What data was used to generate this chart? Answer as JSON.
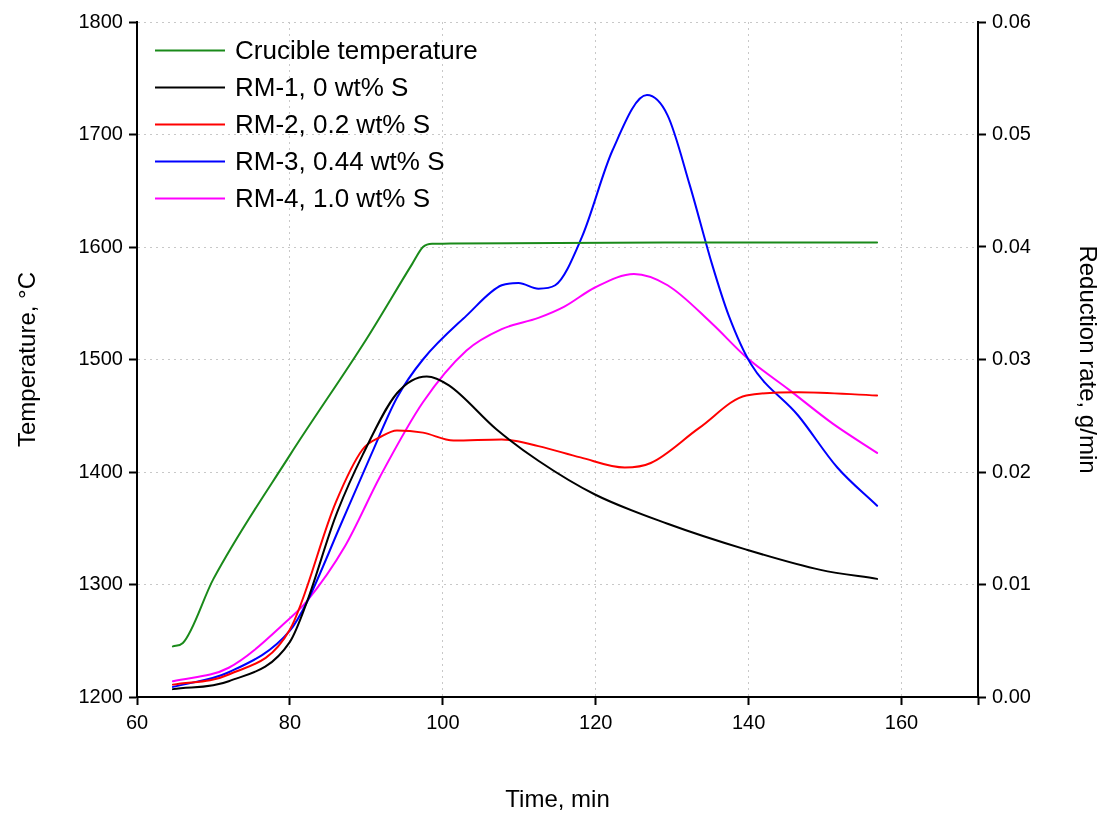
{
  "chart_data": {
    "type": "line",
    "xlabel": "Time, min",
    "ylabel": "Temperature, °C",
    "y2label": "Reduction rate, g/min",
    "xlim": [
      60,
      170
    ],
    "xticks": [
      60,
      80,
      100,
      120,
      140,
      160,
      {
        "value": 170,
        "label": null
      }
    ],
    "ylim": [
      1200,
      1800
    ],
    "yticks": [
      1200,
      1300,
      1400,
      1500,
      1600,
      1700,
      1800
    ],
    "y2lim": [
      0,
      0.06
    ],
    "y2ticks": [
      {
        "value": 0,
        "label": "0.00"
      },
      {
        "value": 0.01,
        "label": "0.01"
      },
      {
        "value": 0.02,
        "label": "0.02"
      },
      {
        "value": 0.03,
        "label": "0.03"
      },
      {
        "value": 0.04,
        "label": "0.04"
      },
      {
        "value": 0.05,
        "label": "0.05"
      },
      {
        "value": 0.06,
        "label": "0.06"
      }
    ],
    "grid": true,
    "legend": "top left",
    "marker": "none",
    "line_style": "solid",
    "series": [
      {
        "name": "Crucible temperature",
        "color": "#1a8a1a",
        "x": [
          64.7,
          66,
          70,
          80,
          90,
          96,
          97.4,
          98.6,
          100,
          130,
          156.8
        ],
        "values": [
          1245,
          1248,
          1305,
          1415,
          1518,
          1585,
          1600,
          1603,
          1603,
          1604,
          1604
        ]
      },
      {
        "name": "RM-1, 0 wt% S",
        "color": "#000000",
        "axis": "y2",
        "x": [
          64.7,
          72,
          80,
          82.2,
          86,
          89.5,
          94,
          97.9,
          100.8,
          107,
          112.5,
          119.9,
          129.4,
          139.7,
          149.4,
          156.8
        ],
        "values": [
          0.0007,
          0.0014,
          0.0049,
          0.0084,
          0.0161,
          0.0215,
          0.027,
          0.0285,
          0.0277,
          0.0238,
          0.021,
          0.018,
          0.0154,
          0.0131,
          0.0113,
          0.0105
        ]
      },
      {
        "name": "RM-2, 0.2 wt% S",
        "color": "#ff0000",
        "axis": "y2",
        "x": [
          64.7,
          72,
          80,
          86,
          89.5,
          91.8,
          94,
          97.4,
          101.4,
          107.7,
          112.5,
          118,
          123.8,
          127.2,
          133.5,
          139.7,
          146.5,
          156.8
        ],
        "values": [
          0.0011,
          0.002,
          0.006,
          0.0173,
          0.022,
          0.0231,
          0.0237,
          0.0235,
          0.0228,
          0.0229,
          0.0223,
          0.0213,
          0.0204,
          0.0208,
          0.0239,
          0.0268,
          0.0271,
          0.0268
        ]
      },
      {
        "name": "RM-3, 0.44 wt% S",
        "color": "#0000ff",
        "axis": "y2",
        "x": [
          64.7,
          72,
          80,
          82.2,
          86.7,
          90.6,
          94,
          97.4,
          103.1,
          107.7,
          109.9,
          112.5,
          114.7,
          118.2,
          122.2,
          126.7,
          129.4,
          132.3,
          135.2,
          137.4,
          140.3,
          146.5,
          151.6,
          156.8
        ],
        "values": [
          0.0009,
          0.0022,
          0.0059,
          0.0084,
          0.0154,
          0.0215,
          0.0266,
          0.03,
          0.0339,
          0.0366,
          0.0368,
          0.0363,
          0.0366,
          0.0409,
          0.0486,
          0.0535,
          0.0517,
          0.0455,
          0.0385,
          0.0339,
          0.0296,
          0.025,
          0.0204,
          0.017
        ]
      },
      {
        "name": "RM-4, 1.0 wt% S",
        "color": "#ff00ff",
        "axis": "y2",
        "x": [
          64.7,
          72,
          80,
          82.2,
          87.2,
          91.8,
          97.4,
          103.1,
          107.7,
          112.5,
          115.9,
          119.9,
          125,
          129.4,
          135.2,
          139.7,
          145.3,
          151,
          156.8
        ],
        "values": [
          0.0014,
          0.0026,
          0.007,
          0.0085,
          0.0134,
          0.0196,
          0.0262,
          0.0308,
          0.0327,
          0.0337,
          0.0347,
          0.0364,
          0.0376,
          0.0366,
          0.0332,
          0.0302,
          0.0273,
          0.0243,
          0.0217
        ]
      }
    ]
  }
}
